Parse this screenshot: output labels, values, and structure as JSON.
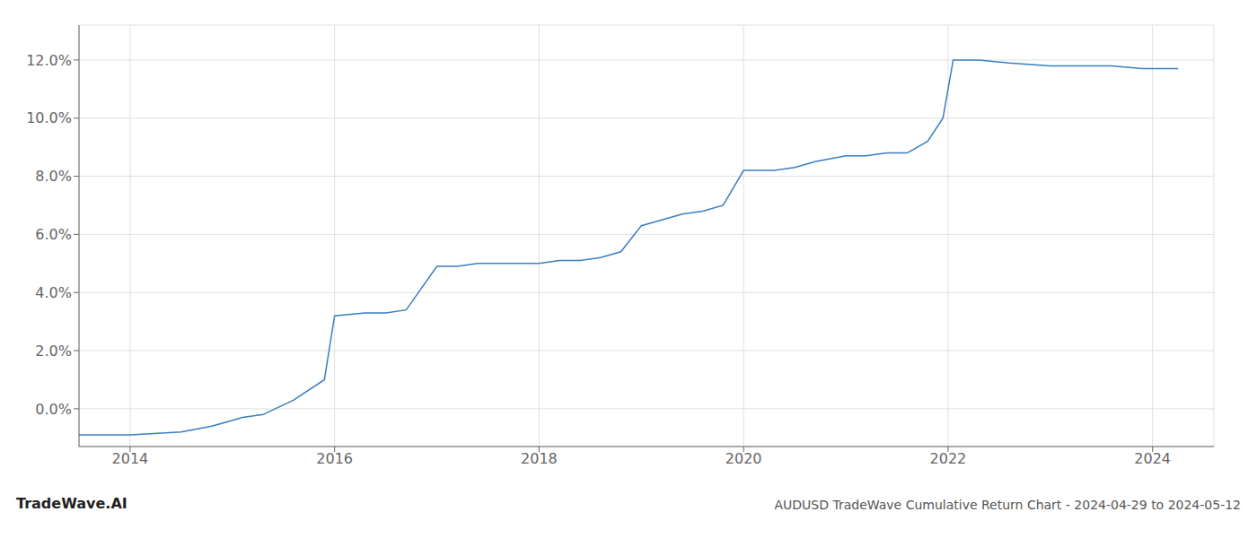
{
  "chart_data": {
    "type": "line",
    "title": "AUDUSD TradeWave Cumulative Return Chart - 2024-04-29 to 2024-05-12",
    "annotations": [
      "TradeWave.AI"
    ],
    "color": "#3a7ebf",
    "grid": true,
    "x": [
      2013.5,
      2014.0,
      2014.5,
      2014.8,
      2015.0,
      2015.1,
      2015.3,
      2015.6,
      2015.9,
      2016.0,
      2016.3,
      2016.5,
      2016.7,
      2017.0,
      2017.2,
      2017.4,
      2017.6,
      2017.8,
      2018.0,
      2018.2,
      2018.4,
      2018.6,
      2018.8,
      2019.0,
      2019.2,
      2019.4,
      2019.6,
      2019.8,
      2020.0,
      2020.15,
      2020.3,
      2020.5,
      2020.7,
      2021.0,
      2021.2,
      2021.4,
      2021.6,
      2021.8,
      2021.95,
      2022.05,
      2022.15,
      2022.3,
      2022.6,
      2023.0,
      2023.3,
      2023.6,
      2023.9,
      2024.0,
      2024.25
    ],
    "values": [
      -0.009,
      -0.009,
      -0.008,
      -0.006,
      -0.004,
      -0.003,
      -0.002,
      0.003,
      0.01,
      0.032,
      0.033,
      0.033,
      0.034,
      0.049,
      0.049,
      0.05,
      0.05,
      0.05,
      0.05,
      0.051,
      0.051,
      0.052,
      0.054,
      0.063,
      0.065,
      0.067,
      0.068,
      0.07,
      0.082,
      0.082,
      0.082,
      0.083,
      0.085,
      0.087,
      0.087,
      0.088,
      0.088,
      0.092,
      0.1,
      0.12,
      0.12,
      0.12,
      0.119,
      0.118,
      0.118,
      0.118,
      0.117,
      0.117,
      0.117
    ],
    "xlim": [
      2013.5,
      2024.6
    ],
    "ylim": [
      -0.013,
      0.132
    ],
    "xticks": [
      2014,
      2016,
      2018,
      2020,
      2022,
      2024
    ],
    "yticks": [
      {
        "value": 0.0,
        "label": "0.0%"
      },
      {
        "value": 0.02,
        "label": "2.0%"
      },
      {
        "value": 0.04,
        "label": "4.0%"
      },
      {
        "value": 0.06,
        "label": "6.0%"
      },
      {
        "value": 0.08,
        "label": "8.0%"
      },
      {
        "value": 0.1,
        "label": "10.0%"
      },
      {
        "value": 0.12,
        "label": "12.0%"
      }
    ]
  }
}
